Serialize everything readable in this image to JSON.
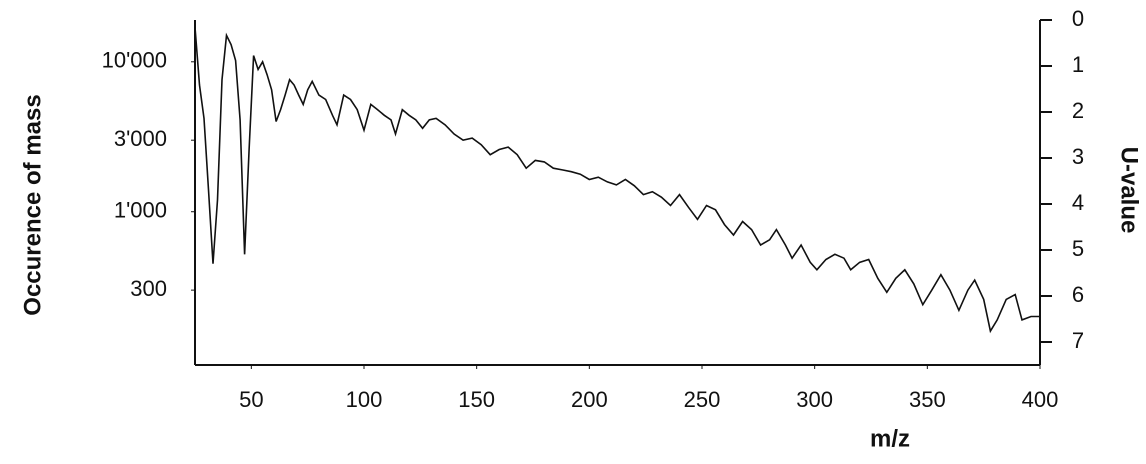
{
  "chart_data": {
    "type": "line",
    "y_label": "Occurence of mass",
    "y2_label": "U-value",
    "x_label": "m/z",
    "x": [
      25,
      27,
      29,
      31,
      33,
      35,
      37,
      39,
      41,
      43,
      45,
      47,
      49,
      51,
      53,
      55,
      57,
      59,
      61,
      63,
      65,
      67,
      69,
      71,
      73,
      75,
      77,
      80,
      83,
      86,
      88,
      91,
      94,
      97,
      100,
      103,
      106,
      109,
      112,
      114,
      117,
      120,
      123,
      126,
      129,
      132,
      136,
      140,
      144,
      148,
      152,
      156,
      160,
      164,
      168,
      172,
      176,
      180,
      184,
      188,
      192,
      196,
      200,
      204,
      208,
      212,
      216,
      220,
      224,
      228,
      232,
      236,
      240,
      244,
      248,
      252,
      256,
      260,
      264,
      268,
      272,
      276,
      280,
      283,
      287,
      290,
      294,
      298,
      301,
      305,
      309,
      313,
      316,
      320,
      324,
      328,
      332,
      336,
      340,
      344,
      348,
      352,
      356,
      360,
      364,
      368,
      371,
      375,
      378,
      381,
      385,
      389,
      392,
      396,
      400
    ],
    "series": [
      {
        "name": "Occurence of mass",
        "color": "#111111",
        "values": [
          17000,
          7000,
          4200,
          1400,
          450,
          1200,
          7600,
          15000,
          13000,
          10200,
          4100,
          520,
          2600,
          11000,
          8900,
          10000,
          8200,
          6500,
          4000,
          4800,
          6000,
          7600,
          7000,
          6000,
          5200,
          6500,
          7400,
          6000,
          5600,
          4400,
          3800,
          6000,
          5600,
          4800,
          3500,
          5200,
          4800,
          4400,
          4100,
          3300,
          4800,
          4400,
          4100,
          3600,
          4100,
          4200,
          3800,
          3300,
          3000,
          3100,
          2800,
          2400,
          2600,
          2700,
          2400,
          1950,
          2200,
          2150,
          1950,
          1900,
          1850,
          1780,
          1640,
          1700,
          1580,
          1510,
          1640,
          1490,
          1300,
          1360,
          1250,
          1100,
          1300,
          1070,
          890,
          1100,
          1030,
          820,
          700,
          860,
          760,
          600,
          650,
          760,
          600,
          490,
          600,
          460,
          410,
          480,
          520,
          490,
          410,
          460,
          480,
          360,
          290,
          360,
          410,
          330,
          240,
          300,
          380,
          300,
          220,
          300,
          350,
          260,
          160,
          190,
          260,
          280,
          190,
          200,
          200
        ]
      }
    ],
    "xlim": [
      25,
      400
    ],
    "xticks": [
      50,
      100,
      150,
      200,
      250,
      300,
      350,
      400
    ],
    "ylim": [
      95,
      19000
    ],
    "log_y": true,
    "yticks": [
      {
        "value": 10000,
        "label": "10'000"
      },
      {
        "value": 3000,
        "label": "3'000"
      },
      {
        "value": 1000,
        "label": "1'000"
      },
      300
    ],
    "y2lim": [
      7.5,
      0
    ],
    "y2ticks": [
      0,
      1,
      2,
      3,
      4,
      5,
      6,
      7
    ]
  }
}
